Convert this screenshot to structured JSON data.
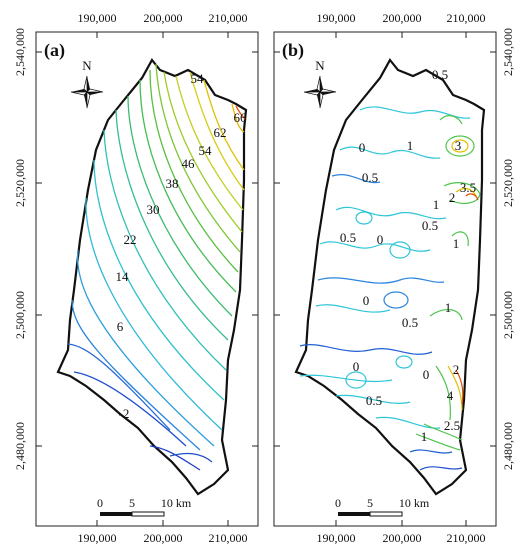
{
  "panels": [
    {
      "label": "(a)",
      "x_ticks": [
        "190,000",
        "200,000",
        "210,000"
      ],
      "y_ticks": [
        "2,540,000",
        "2,520,000",
        "2,500,000",
        "2,480,000"
      ],
      "north": "N",
      "scale": [
        "0",
        "5",
        "10 km"
      ],
      "contour_labels": [
        "54",
        "66",
        "62",
        "54",
        "46",
        "38",
        "30",
        "22",
        "14",
        "6",
        "-2"
      ]
    },
    {
      "label": "(b)",
      "x_ticks": [
        "190,000",
        "200,000",
        "210,000"
      ],
      "y_ticks": [
        "2,540,000",
        "2,520,000",
        "2,500,000",
        "2,480,000"
      ],
      "north": "N",
      "scale": [
        "0",
        "5",
        "10 km"
      ],
      "contour_labels": [
        "0.5",
        "0",
        "1",
        "3",
        "0.5",
        "3.5",
        "2",
        "1",
        "0.5",
        "0.5",
        "0",
        "1",
        "0",
        "1",
        "0.5",
        "0",
        "0",
        "2",
        "4",
        "0.5",
        "2.5",
        "1"
      ]
    }
  ],
  "colors": {
    "frame": "#222222",
    "boundary": "#111111",
    "low": "#1f5fd6",
    "mid": "#2fc6d8",
    "green": "#4cc44c",
    "high": "#e0c000",
    "max": "#e05000"
  }
}
